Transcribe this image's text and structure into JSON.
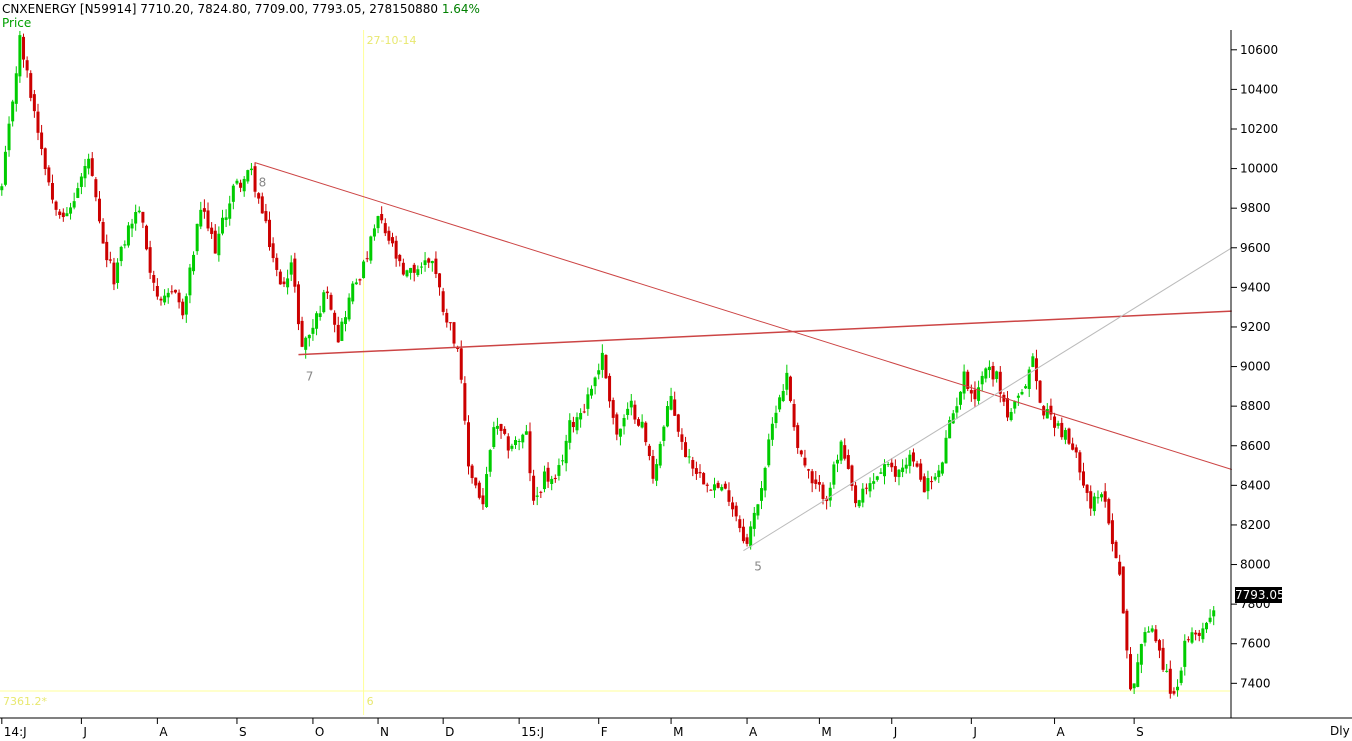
{
  "header": {
    "symbol": "CNXENERGY [N59914]",
    "ohlc": "7710.20, 7824.80, 7709.00, 7793.05,",
    "volume": "278150880",
    "change": "1.64%"
  },
  "panel_label": "Price",
  "last_price": "7793.05",
  "periodicity": "Dly",
  "colors": {
    "up": "#00cc00",
    "down": "#cc0000",
    "trendline": "#cc4444",
    "cursor": "#ffff99",
    "axis": "#000000"
  },
  "chart_data": {
    "type": "candlestick",
    "ylim": [
      7240,
      10700
    ],
    "yticks": [
      7400,
      7600,
      7800,
      8000,
      8200,
      8400,
      8600,
      8800,
      9000,
      9200,
      9400,
      9600,
      9800,
      10000,
      10200,
      10400,
      10600
    ],
    "ytick_labels": [
      "7400",
      "7600",
      "7800",
      "8000",
      "8200",
      "8400",
      "8600",
      "8800",
      "9000",
      "9200",
      "9400",
      "9600",
      "9800",
      "10000",
      "10200",
      "10400",
      "10600"
    ],
    "xlabels": [
      {
        "label": "14:J",
        "bar": 0
      },
      {
        "label": "J",
        "bar": 22
      },
      {
        "label": "A",
        "bar": 43
      },
      {
        "label": "S",
        "bar": 65
      },
      {
        "label": "O",
        "bar": 86
      },
      {
        "label": "N",
        "bar": 104
      },
      {
        "label": "D",
        "bar": 122
      },
      {
        "label": "15:J",
        "bar": 143
      },
      {
        "label": "F",
        "bar": 165
      },
      {
        "label": "M",
        "bar": 185
      },
      {
        "label": "A",
        "bar": 206
      },
      {
        "label": "M",
        "bar": 226
      },
      {
        "label": "J",
        "bar": 246
      },
      {
        "label": "J",
        "bar": 268
      },
      {
        "label": "A",
        "bar": 291
      },
      {
        "label": "S",
        "bar": 313
      }
    ],
    "bar_count": 340,
    "anchors": [
      {
        "bar": 0,
        "price": 9900
      },
      {
        "bar": 5,
        "price": 10650
      },
      {
        "bar": 10,
        "price": 10200
      },
      {
        "bar": 14,
        "price": 9850
      },
      {
        "bar": 18,
        "price": 9750
      },
      {
        "bar": 24,
        "price": 10050
      },
      {
        "bar": 28,
        "price": 9600
      },
      {
        "bar": 31,
        "price": 9450
      },
      {
        "bar": 35,
        "price": 9700
      },
      {
        "bar": 38,
        "price": 9800
      },
      {
        "bar": 41,
        "price": 9500
      },
      {
        "bar": 44,
        "price": 9300
      },
      {
        "bar": 48,
        "price": 9400
      },
      {
        "bar": 50,
        "price": 9250
      },
      {
        "bar": 55,
        "price": 9800
      },
      {
        "bar": 59,
        "price": 9600
      },
      {
        "bar": 64,
        "price": 9900
      },
      {
        "bar": 69,
        "price": 9980
      },
      {
        "bar": 73,
        "price": 9700
      },
      {
        "bar": 77,
        "price": 9400
      },
      {
        "bar": 80,
        "price": 9520
      },
      {
        "bar": 83,
        "price": 9100
      },
      {
        "bar": 86,
        "price": 9200
      },
      {
        "bar": 90,
        "price": 9400
      },
      {
        "bar": 93,
        "price": 9150
      },
      {
        "bar": 97,
        "price": 9400
      },
      {
        "bar": 100,
        "price": 9500
      },
      {
        "bar": 104,
        "price": 9750
      },
      {
        "bar": 108,
        "price": 9600
      },
      {
        "bar": 111,
        "price": 9450
      },
      {
        "bar": 115,
        "price": 9500
      },
      {
        "bar": 119,
        "price": 9550
      },
      {
        "bar": 122,
        "price": 9300
      },
      {
        "bar": 126,
        "price": 9100
      },
      {
        "bar": 129,
        "price": 8500
      },
      {
        "bar": 133,
        "price": 8300
      },
      {
        "bar": 136,
        "price": 8700
      },
      {
        "bar": 140,
        "price": 8600
      },
      {
        "bar": 145,
        "price": 8650
      },
      {
        "bar": 147,
        "price": 8300
      },
      {
        "bar": 150,
        "price": 8450
      },
      {
        "bar": 153,
        "price": 8400
      },
      {
        "bar": 157,
        "price": 8700
      },
      {
        "bar": 161,
        "price": 8800
      },
      {
        "bar": 166,
        "price": 9050
      },
      {
        "bar": 170,
        "price": 8650
      },
      {
        "bar": 174,
        "price": 8800
      },
      {
        "bar": 177,
        "price": 8700
      },
      {
        "bar": 180,
        "price": 8450
      },
      {
        "bar": 185,
        "price": 8850
      },
      {
        "bar": 188,
        "price": 8600
      },
      {
        "bar": 193,
        "price": 8450
      },
      {
        "bar": 197,
        "price": 8400
      },
      {
        "bar": 201,
        "price": 8350
      },
      {
        "bar": 206,
        "price": 8100
      },
      {
        "bar": 210,
        "price": 8400
      },
      {
        "bar": 214,
        "price": 8800
      },
      {
        "bar": 217,
        "price": 8950
      },
      {
        "bar": 220,
        "price": 8600
      },
      {
        "bar": 224,
        "price": 8400
      },
      {
        "bar": 228,
        "price": 8350
      },
      {
        "bar": 232,
        "price": 8600
      },
      {
        "bar": 236,
        "price": 8300
      },
      {
        "bar": 240,
        "price": 8400
      },
      {
        "bar": 244,
        "price": 8500
      },
      {
        "bar": 247,
        "price": 8450
      },
      {
        "bar": 251,
        "price": 8550
      },
      {
        "bar": 255,
        "price": 8400
      },
      {
        "bar": 259,
        "price": 8450
      },
      {
        "bar": 262,
        "price": 8700
      },
      {
        "bar": 266,
        "price": 8950
      },
      {
        "bar": 269,
        "price": 8850
      },
      {
        "bar": 272,
        "price": 9000
      },
      {
        "bar": 275,
        "price": 8950
      },
      {
        "bar": 278,
        "price": 8750
      },
      {
        "bar": 282,
        "price": 8850
      },
      {
        "bar": 285,
        "price": 9050
      },
      {
        "bar": 287,
        "price": 8800
      },
      {
        "bar": 290,
        "price": 8750
      },
      {
        "bar": 294,
        "price": 8650
      },
      {
        "bar": 298,
        "price": 8500
      },
      {
        "bar": 301,
        "price": 8300
      },
      {
        "bar": 305,
        "price": 8350
      },
      {
        "bar": 307,
        "price": 8100
      },
      {
        "bar": 309,
        "price": 7980
      },
      {
        "bar": 310,
        "price": 7750
      },
      {
        "bar": 312,
        "price": 7350
      },
      {
        "bar": 315,
        "price": 7600
      },
      {
        "bar": 318,
        "price": 7700
      },
      {
        "bar": 321,
        "price": 7500
      },
      {
        "bar": 324,
        "price": 7320
      },
      {
        "bar": 327,
        "price": 7580
      },
      {
        "bar": 330,
        "price": 7650
      },
      {
        "bar": 333,
        "price": 7700
      },
      {
        "bar": 335,
        "price": 7793
      }
    ],
    "trendlines": [
      {
        "from": {
          "bar": 70,
          "price": 10030
        },
        "to": {
          "bar": 340,
          "price": 8480
        },
        "width": 1
      },
      {
        "from": {
          "bar": 82,
          "price": 9060
        },
        "to": {
          "bar": 340,
          "price": 9280
        },
        "width": 1.5
      },
      {
        "from": {
          "bar": 205,
          "price": 8070
        },
        "to": {
          "bar": 340,
          "price": 9600
        },
        "width": 1,
        "color": "#bbbbbb"
      }
    ],
    "point_labels": [
      {
        "text": "8",
        "bar": 71,
        "price": 9970
      },
      {
        "text": "7",
        "bar": 84,
        "price": 8990
      },
      {
        "text": "5",
        "bar": 208,
        "price": 8030
      }
    ],
    "cursor": {
      "bar": 100,
      "price": 7361.24,
      "date_label": "27-10-14",
      "price_label": "7361.2*",
      "bar_label": "6"
    }
  }
}
